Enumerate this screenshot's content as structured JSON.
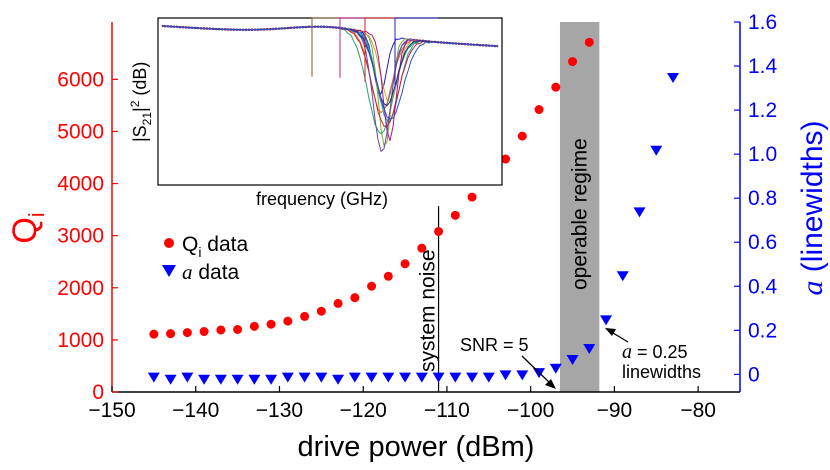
{
  "chart_data": {
    "type": "scatter",
    "xlabel": "drive power (dBm)",
    "ylabel_left": "Q",
    "ylabel_left_sub": "i",
    "ylabel_right_italic": "a",
    "ylabel_right_rest": " (linewidths)",
    "xlim": [
      -150,
      -75
    ],
    "ylim_left": [
      0,
      7100
    ],
    "ylim_right": [
      -0.08,
      1.6
    ],
    "x_ticks": [
      -150,
      -140,
      -130,
      -120,
      -110,
      -100,
      -90,
      -80
    ],
    "x_tick_labels": [
      "−150",
      "−140",
      "−130",
      "−120",
      "−110",
      "−100",
      "−90",
      "−80"
    ],
    "y_left_ticks": [
      0,
      1000,
      2000,
      3000,
      4000,
      5000,
      6000
    ],
    "y_left_tick_labels": [
      "0",
      "1000",
      "2000",
      "3000",
      "4000",
      "5000",
      "6000"
    ],
    "y_right_ticks": [
      0,
      0.2,
      0.4,
      0.6,
      0.8,
      1.0,
      1.2,
      1.4,
      1.6
    ],
    "y_right_tick_labels": [
      "0",
      "0.2",
      "0.4",
      "0.6",
      "0.8",
      "1.0",
      "1.2",
      "1.4",
      "1.6"
    ],
    "series": [
      {
        "name": "Qi data",
        "axis": "left",
        "color": "#ff0000",
        "marker": "circle",
        "x": [
          -145,
          -143,
          -141,
          -139,
          -137,
          -135,
          -133,
          -131,
          -129,
          -127,
          -125,
          -123,
          -121,
          -119,
          -117,
          -115,
          -113,
          -111,
          -109,
          -107,
          -105,
          -103,
          -101,
          -99,
          -97,
          -95,
          -93
        ],
        "y": [
          1110,
          1120,
          1140,
          1160,
          1190,
          1200,
          1260,
          1300,
          1360,
          1450,
          1550,
          1700,
          1810,
          2030,
          2220,
          2460,
          2760,
          3080,
          3390,
          3740,
          4070,
          4470,
          4910,
          5420,
          5850,
          6340,
          6710
        ]
      },
      {
        "name": "a data",
        "axis": "right",
        "color": "#0000ff",
        "marker": "triangle-down",
        "x": [
          -145,
          -143,
          -141,
          -139,
          -137,
          -135,
          -133,
          -131,
          -129,
          -127,
          -125,
          -123,
          -121,
          -119,
          -117,
          -115,
          -113,
          -111,
          -109,
          -107,
          -105,
          -103,
          -101,
          -99,
          -97,
          -95,
          -93,
          -91,
          -89,
          -87,
          -85,
          -83
        ],
        "y": [
          -0.01,
          -0.02,
          -0.01,
          -0.02,
          -0.02,
          -0.02,
          -0.02,
          -0.02,
          -0.01,
          -0.01,
          -0.01,
          -0.02,
          -0.01,
          -0.01,
          -0.01,
          -0.01,
          -0.01,
          -0.01,
          -0.01,
          -0.01,
          -0.01,
          0.0,
          0.0,
          0.01,
          0.03,
          0.07,
          0.12,
          0.25,
          0.45,
          0.74,
          1.02,
          1.35
        ]
      }
    ],
    "shaded_region": {
      "x_start": -96.5,
      "x_end": -91.8,
      "label": "operable regime",
      "color": "#a6a6a6"
    },
    "vline": {
      "x": -111,
      "label": "system noise"
    },
    "annotations": [
      {
        "text": "SNR = 5",
        "arrow_to_x": -96.5
      },
      {
        "text_italic": "a",
        "text": " = 0.25",
        "text_line2": "linewidths"
      }
    ],
    "legend": {
      "position": "center-left",
      "entries": [
        {
          "label_main": "Q",
          "label_sub": "i",
          "label_rest": " data"
        },
        {
          "label_italic": "a",
          "label_rest": " data"
        }
      ]
    },
    "inset": {
      "xlabel": "frequency (GHz)",
      "ylabel_pre": "|S",
      "ylabel_sub": "21",
      "ylabel_post": "|",
      "ylabel_sup": "2",
      "ylabel_unit": " (dB)"
    }
  }
}
